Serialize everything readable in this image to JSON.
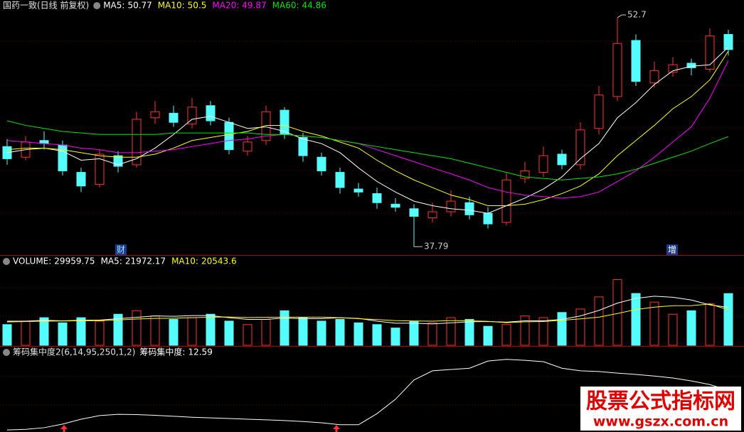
{
  "chart_data": [
    {
      "type": "candlestick",
      "title": "国药一致(日线 前复权)",
      "open": [
        44.2,
        43.5,
        44.6,
        44.3,
        42.5,
        41.7,
        43.6,
        43.0,
        46.1,
        46.4,
        45.7,
        46.9,
        45.8,
        43.9,
        44.6,
        46.6,
        44.8,
        43.5,
        42.5,
        41.4,
        41.1,
        40.4,
        40.1,
        39.5,
        39.9,
        40.5,
        39.8,
        39.2,
        42.1,
        42.5,
        43.7,
        43.0,
        45.4,
        47.5,
        51.2,
        48.4,
        49.1,
        49.7,
        49.3,
        51.6
      ],
      "high": [
        44.7,
        44.9,
        45.2,
        44.6,
        42.8,
        44.0,
        43.9,
        46.5,
        47.2,
        46.9,
        47.4,
        47.2,
        46.1,
        44.9,
        46.9,
        46.8,
        45.1,
        43.8,
        42.8,
        41.8,
        41.5,
        40.8,
        40.4,
        40.5,
        41.3,
        40.9,
        40.2,
        42.5,
        43.2,
        44.2,
        44.0,
        45.8,
        48.2,
        52.7,
        51.6,
        49.8,
        50.1,
        50.0,
        52.0,
        51.9
      ],
      "low": [
        43.0,
        43.3,
        44.0,
        42.3,
        41.2,
        41.5,
        42.5,
        42.8,
        45.7,
        45.5,
        45.4,
        45.6,
        43.7,
        43.6,
        44.3,
        44.7,
        43.2,
        42.3,
        41.1,
        40.9,
        40.1,
        39.9,
        37.79,
        39.2,
        39.6,
        39.4,
        38.8,
        39.0,
        41.8,
        42.2,
        42.7,
        42.7,
        45.0,
        47.2,
        48.2,
        48.1,
        48.8,
        48.9,
        49.1,
        50.2
      ],
      "close": [
        43.4,
        44.5,
        44.4,
        42.6,
        41.6,
        43.7,
        42.9,
        46.0,
        46.5,
        45.8,
        46.8,
        45.9,
        44.0,
        44.5,
        46.5,
        45.0,
        43.6,
        42.6,
        41.5,
        41.2,
        40.5,
        40.2,
        39.6,
        39.9,
        40.6,
        39.7,
        39.1,
        42.0,
        42.6,
        43.6,
        43.0,
        45.3,
        47.6,
        51.0,
        48.5,
        49.2,
        49.6,
        49.4,
        51.5,
        50.6
      ],
      "up_color": "#ff3232",
      "down_color": "#54fcfc",
      "ylim": [
        37.09,
        53.87
      ],
      "series": [
        {
          "name": "MA5:",
          "color": "#ffffff",
          "values": [
            43.8,
            44.0,
            44.1,
            43.9,
            43.3,
            43.4,
            43.0,
            43.4,
            44.1,
            45.0,
            46.0,
            46.2,
            45.8,
            45.4,
            45.5,
            45.2,
            44.7,
            44.4,
            43.8,
            42.8,
            41.9,
            41.2,
            40.6,
            40.3,
            40.1,
            40.0,
            39.8,
            40.3,
            40.8,
            41.4,
            42.2,
            43.4,
            44.4,
            46.1,
            47.1,
            48.3,
            49.2,
            49.5,
            49.6,
            50.77
          ]
        },
        {
          "name": "MA10:",
          "color": "#ffff00",
          "values": [
            44.0,
            44.1,
            44.1,
            44.0,
            43.8,
            43.6,
            43.5,
            43.5,
            43.7,
            44.1,
            44.6,
            44.8,
            45.0,
            45.2,
            45.6,
            45.6,
            45.2,
            44.9,
            44.5,
            44.1,
            43.3,
            42.6,
            42.0,
            41.5,
            41.0,
            40.7,
            40.3,
            40.3,
            40.4,
            40.7,
            41.1,
            41.6,
            42.4,
            43.6,
            44.6,
            45.6,
            46.7,
            47.5,
            48.6,
            50.5
          ]
        },
        {
          "name": "MA20:",
          "color": "#ff00ff",
          "values": [
            44.6,
            44.5,
            44.4,
            44.3,
            44.1,
            44.0,
            43.8,
            43.8,
            43.9,
            44.0,
            44.2,
            44.4,
            44.6,
            44.7,
            44.9,
            45.0,
            44.9,
            44.8,
            44.6,
            44.4,
            44.0,
            43.6,
            43.2,
            42.8,
            42.4,
            42.0,
            41.5,
            41.2,
            41.0,
            40.9,
            40.8,
            40.9,
            41.2,
            41.9,
            42.6,
            43.5,
            44.5,
            45.5,
            47.4,
            49.87
          ]
        },
        {
          "name": "MA60:",
          "color": "#00e600",
          "values": [
            45.9,
            45.6,
            45.4,
            45.2,
            45.1,
            45.0,
            45.0,
            45.0,
            45.0,
            45.1,
            45.1,
            45.1,
            45.1,
            45.1,
            45.0,
            45.0,
            44.9,
            44.8,
            44.6,
            44.4,
            44.2,
            44.0,
            43.8,
            43.6,
            43.4,
            43.1,
            42.8,
            42.5,
            42.2,
            42.1,
            42.0,
            42.1,
            42.2,
            42.4,
            42.7,
            43.1,
            43.5,
            43.9,
            44.4,
            44.86
          ]
        }
      ],
      "annotations": [
        "财",
        "增"
      ]
    },
    {
      "type": "bar",
      "ylim": [
        0,
        47700
      ],
      "up_color": "#ff3232",
      "down_color": "#54fcfc",
      "series": [
        {
          "name": "VOLUME:",
          "color": "#ffffff",
          "values": [
            12000,
            14000,
            16000,
            13000,
            16000,
            14000,
            18000,
            20000,
            17000,
            15000,
            16000,
            18000,
            14000,
            12000,
            15000,
            20000,
            16000,
            14000,
            15000,
            13000,
            12000,
            10000,
            14000,
            13000,
            16000,
            15000,
            11000,
            12000,
            17000,
            16000,
            19000,
            21000,
            28000,
            38000,
            30000,
            25000,
            18000,
            20000,
            24000,
            29959.75
          ]
        },
        {
          "name": "MA5:",
          "color": "#ffffff",
          "values": [
            14000,
            14000,
            14500,
            14200,
            14500,
            14600,
            15400,
            16200,
            17000,
            16800,
            17200,
            17200,
            16000,
            15000,
            15000,
            15800,
            15400,
            15400,
            16000,
            15600,
            14000,
            12800,
            12800,
            12400,
            13000,
            13600,
            13800,
            13400,
            14200,
            14200,
            15000,
            17000,
            20200,
            24400,
            27200,
            28400,
            27800,
            26200,
            23400,
            21972.17
          ]
        },
        {
          "name": "MA10:",
          "color": "#ffff00",
          "values": [
            13500,
            13800,
            14000,
            14100,
            14200,
            14300,
            14700,
            15200,
            15600,
            15700,
            16000,
            16300,
            16400,
            16100,
            16200,
            16300,
            16300,
            16300,
            16000,
            15400,
            14900,
            14300,
            14100,
            14000,
            14300,
            14200,
            13900,
            13100,
            13600,
            13800,
            14500,
            15300,
            16300,
            18400,
            20700,
            22100,
            22900,
            23000,
            23900,
            20543.6
          ]
        }
      ]
    },
    {
      "type": "line",
      "title": "筹码集中度2(6,14,95,250,1,2)",
      "ylim": [
        0,
        25
      ],
      "series": [
        {
          "name": "筹码集中度:",
          "color": "#ffffff",
          "values": [
            0.4,
            0.6,
            1.1,
            2.2,
            3.7,
            4.8,
            5.2,
            5.1,
            4.9,
            4.6,
            4.3,
            4.1,
            3.9,
            3.7,
            3.5,
            3.3,
            3.0,
            2.6,
            2.0,
            2.0,
            5.4,
            9.8,
            15.7,
            18.5,
            18.9,
            19.3,
            21.5,
            22.0,
            21.7,
            21.3,
            19.3,
            18.5,
            18.3,
            17.8,
            17.4,
            16.9,
            16.3,
            15.4,
            14.3,
            12.59
          ]
        }
      ]
    }
  ],
  "watermark": {
    "title": "股票公式指标网",
    "url": "www.gszx.com.cn"
  }
}
